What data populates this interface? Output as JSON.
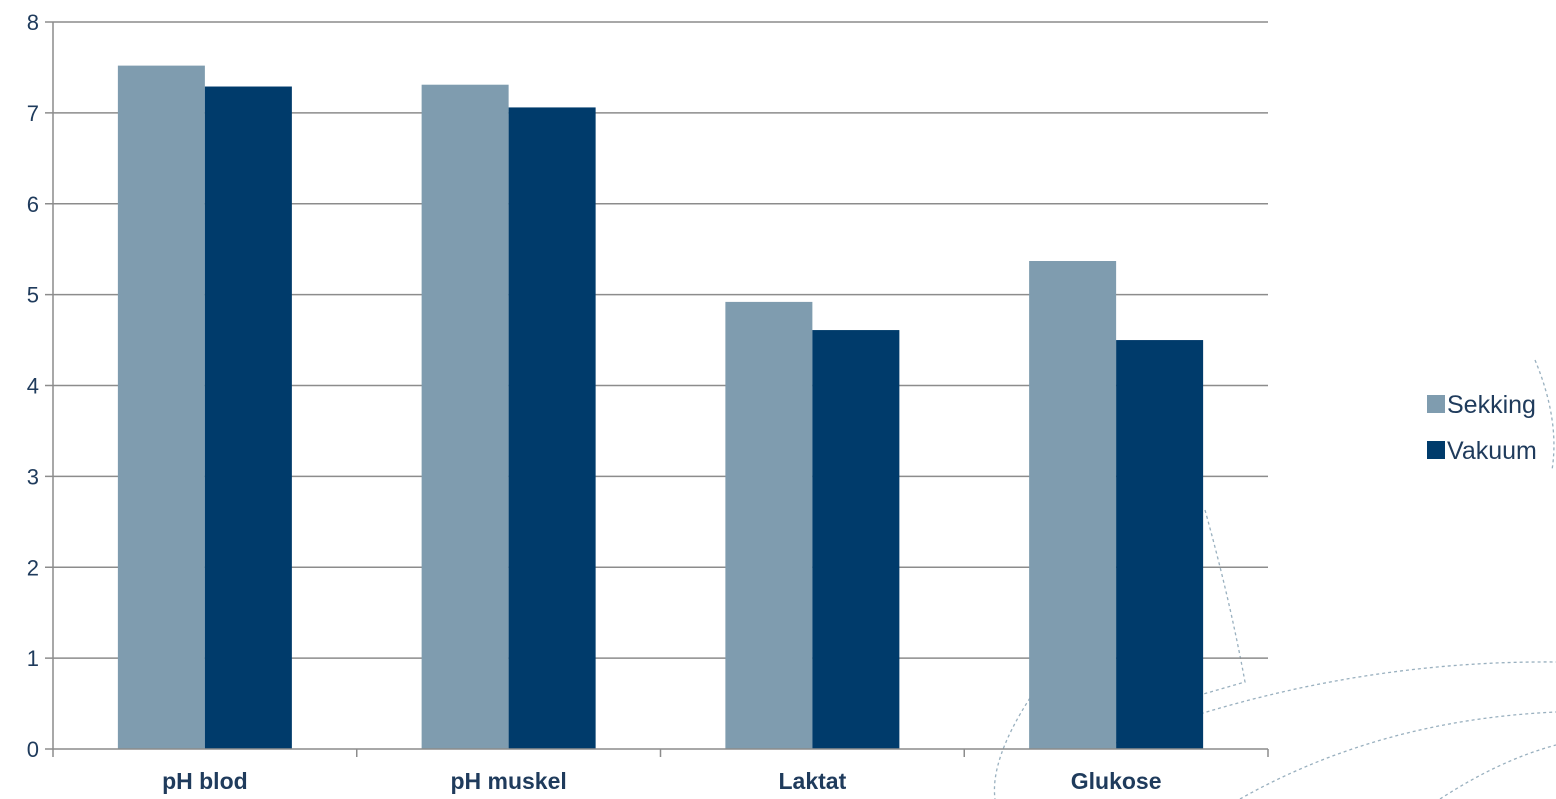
{
  "chart_data": {
    "type": "bar",
    "categories": [
      "pH blod",
      "pH muskel",
      "Laktat",
      "Glukose"
    ],
    "series": [
      {
        "name": "Sekking",
        "values": [
          7.52,
          7.31,
          4.92,
          5.37
        ],
        "color": "#7f9caf"
      },
      {
        "name": "Vakuum",
        "values": [
          7.29,
          7.06,
          4.61,
          4.5
        ],
        "color": "#003b6b"
      }
    ],
    "title": "",
    "xlabel": "",
    "ylabel": "",
    "ylim": [
      0,
      8
    ],
    "yticks": [
      "0",
      "1",
      "2",
      "3",
      "4",
      "5",
      "6",
      "7",
      "8"
    ],
    "grid": true,
    "legend_position": "right",
    "colors": {
      "axis": "#8c8c8c",
      "grid": "#8c8c8c",
      "text": "#1f3b5c",
      "decor": "#7f9caf"
    }
  }
}
